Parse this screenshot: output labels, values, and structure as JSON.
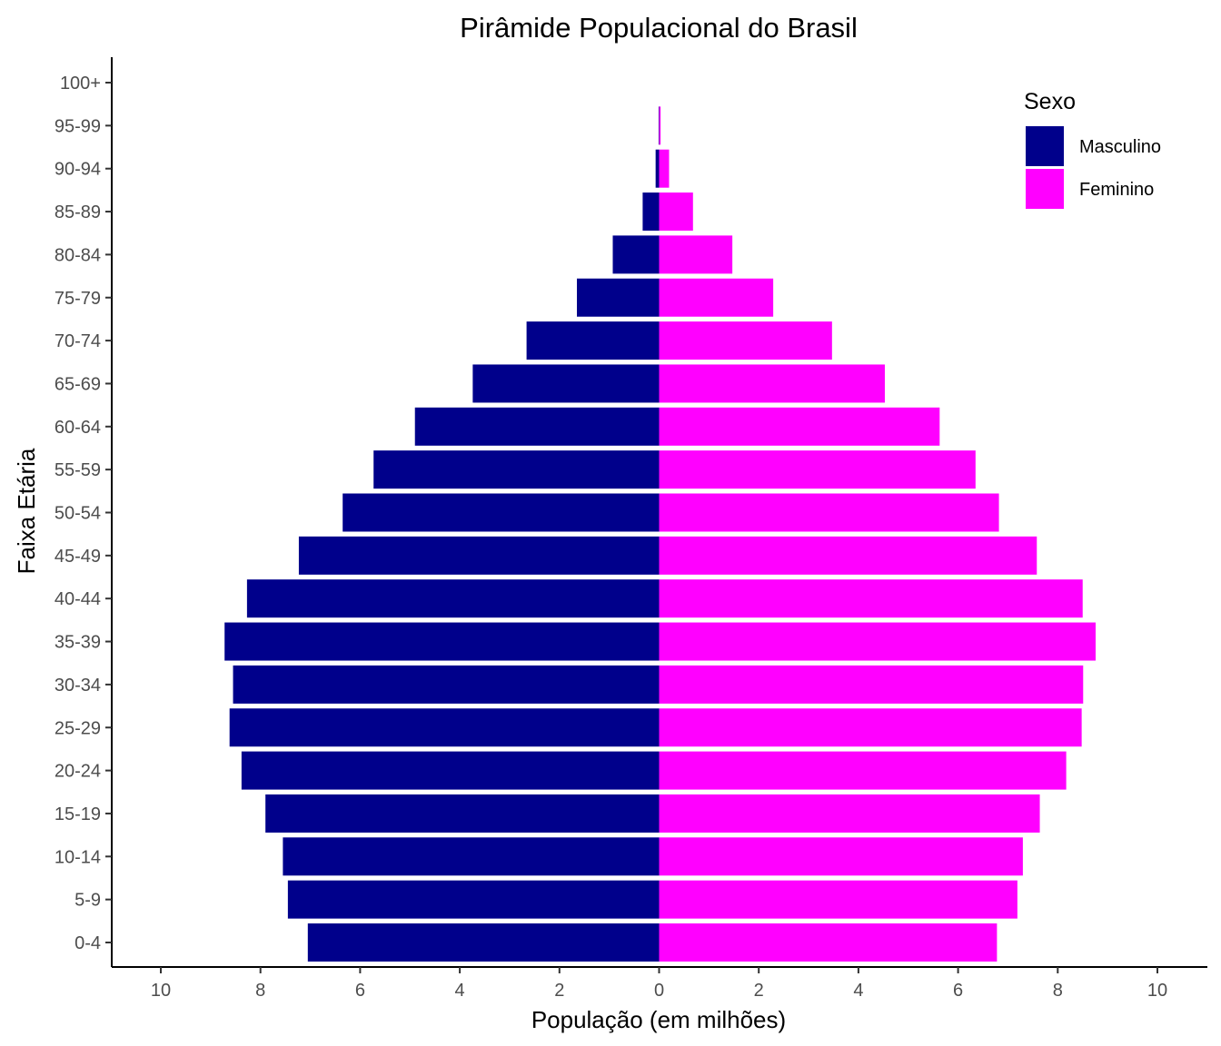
{
  "chart_data": {
    "type": "bar",
    "orientation": "horizontal",
    "title": "Pirâmide Populacional do Brasil",
    "xlabel": "População (em milhões)",
    "ylabel": "Faixa Etária",
    "xlim": [
      -10,
      10
    ],
    "xticks": [
      -10,
      -8,
      -6,
      -4,
      -2,
      0,
      2,
      4,
      6,
      8,
      10
    ],
    "xtick_labels": [
      "10",
      "8",
      "6",
      "4",
      "2",
      "0",
      "2",
      "4",
      "6",
      "8",
      "10"
    ],
    "categories": [
      "0-4",
      "5-9",
      "10-14",
      "15-19",
      "20-24",
      "25-29",
      "30-34",
      "35-39",
      "40-44",
      "45-49",
      "50-54",
      "55-59",
      "60-64",
      "65-69",
      "70-74",
      "75-79",
      "80-84",
      "85-89",
      "90-94",
      "95-99",
      "100+"
    ],
    "legend": {
      "title": "Sexo",
      "position": "top-right"
    },
    "grid": false,
    "series": [
      {
        "name": "Masculino",
        "color": "#00008B",
        "side": "left",
        "values": [
          7.05,
          7.45,
          7.55,
          7.9,
          8.38,
          8.62,
          8.55,
          8.72,
          8.27,
          7.23,
          6.35,
          5.73,
          4.9,
          3.74,
          2.66,
          1.65,
          0.93,
          0.33,
          0.07,
          0.01,
          0.0
        ]
      },
      {
        "name": "Feminino",
        "color": "#FF00FF",
        "side": "right",
        "values": [
          6.78,
          7.19,
          7.3,
          7.64,
          8.17,
          8.48,
          8.51,
          8.76,
          8.5,
          7.58,
          6.82,
          6.35,
          5.63,
          4.53,
          3.47,
          2.29,
          1.47,
          0.68,
          0.2,
          0.03,
          0.0
        ]
      }
    ]
  }
}
